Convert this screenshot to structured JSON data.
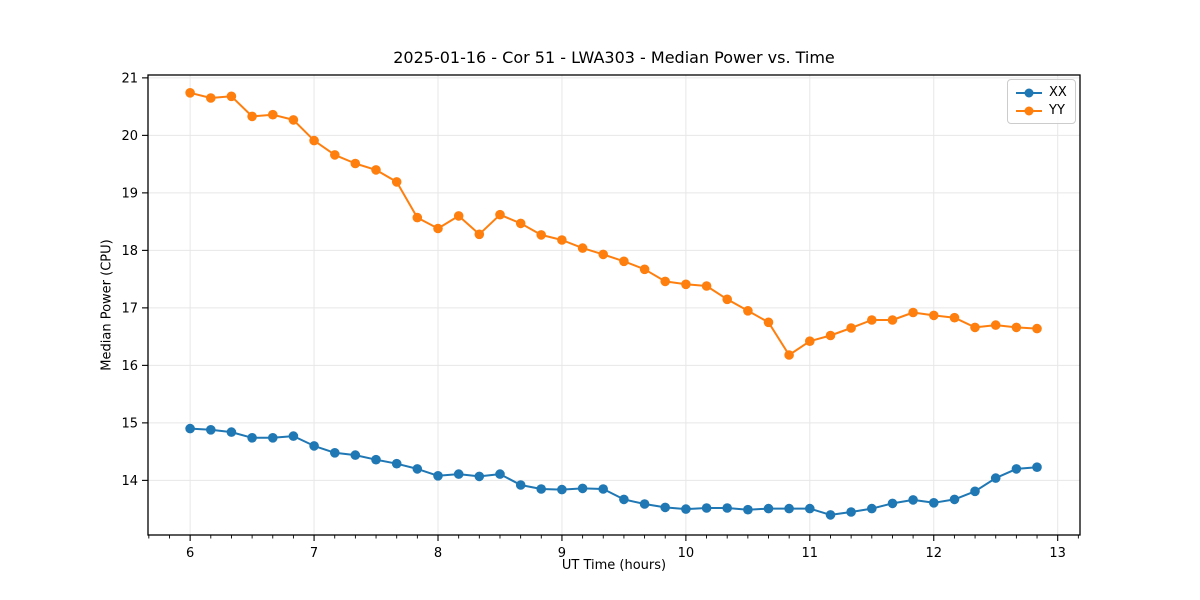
{
  "figure": {
    "title": "2025-01-16 - Cor 51 - LWA303 - Median Power vs. Time",
    "xlabel": "UT Time (hours)",
    "ylabel": "Median Power (CPU)"
  },
  "colors": {
    "grid": "#e7e7e7",
    "spine": "#000000",
    "background": "#ffffff"
  },
  "chart_data": {
    "type": "line",
    "title": "2025-01-16 - Cor 51 - LWA303 - Median Power vs. Time",
    "xlabel": "UT Time (hours)",
    "ylabel": "Median Power (CPU)",
    "xlim": [
      5.66,
      13.18
    ],
    "ylim": [
      13.05,
      21.05
    ],
    "xticks": [
      6,
      7,
      8,
      9,
      10,
      11,
      12,
      13
    ],
    "yticks": [
      14,
      15,
      16,
      17,
      18,
      19,
      20,
      21
    ],
    "x_minor_step": 0.166667,
    "grid": true,
    "legend_position": "upper right",
    "x": [
      6.0,
      6.167,
      6.333,
      6.5,
      6.667,
      6.833,
      7.0,
      7.167,
      7.333,
      7.5,
      7.667,
      7.833,
      8.0,
      8.167,
      8.333,
      8.5,
      8.667,
      8.833,
      9.0,
      9.167,
      9.333,
      9.5,
      9.667,
      9.833,
      10.0,
      10.167,
      10.333,
      10.5,
      10.667,
      10.833,
      11.0,
      11.167,
      11.333,
      11.5,
      11.667,
      11.833,
      12.0,
      12.167,
      12.333,
      12.5,
      12.667,
      12.833
    ],
    "series": [
      {
        "name": "XX",
        "color": "#1f77b4",
        "marker": "circle",
        "values": [
          14.9,
          14.88,
          14.84,
          14.74,
          14.74,
          14.77,
          14.6,
          14.48,
          14.44,
          14.36,
          14.29,
          14.2,
          14.08,
          14.11,
          14.07,
          14.11,
          13.92,
          13.85,
          13.84,
          13.86,
          13.85,
          13.67,
          13.59,
          13.53,
          13.5,
          13.52,
          13.52,
          13.49,
          13.51,
          13.51,
          13.51,
          13.4,
          13.45,
          13.51,
          13.6,
          13.66,
          13.61,
          13.67,
          13.81,
          14.04,
          14.2,
          14.23
        ]
      },
      {
        "name": "YY",
        "color": "#ff7f0e",
        "marker": "circle",
        "values": [
          20.74,
          20.65,
          20.68,
          20.33,
          20.36,
          20.27,
          19.91,
          19.66,
          19.51,
          19.4,
          19.19,
          18.57,
          18.38,
          18.6,
          18.28,
          18.62,
          18.47,
          18.27,
          18.18,
          18.04,
          17.93,
          17.81,
          17.67,
          17.46,
          17.41,
          17.38,
          17.15,
          16.95,
          16.75,
          16.18,
          16.42,
          16.52,
          16.65,
          16.79,
          16.79,
          16.92,
          16.87,
          16.83,
          16.66,
          16.7,
          16.66,
          16.64
        ]
      }
    ]
  }
}
